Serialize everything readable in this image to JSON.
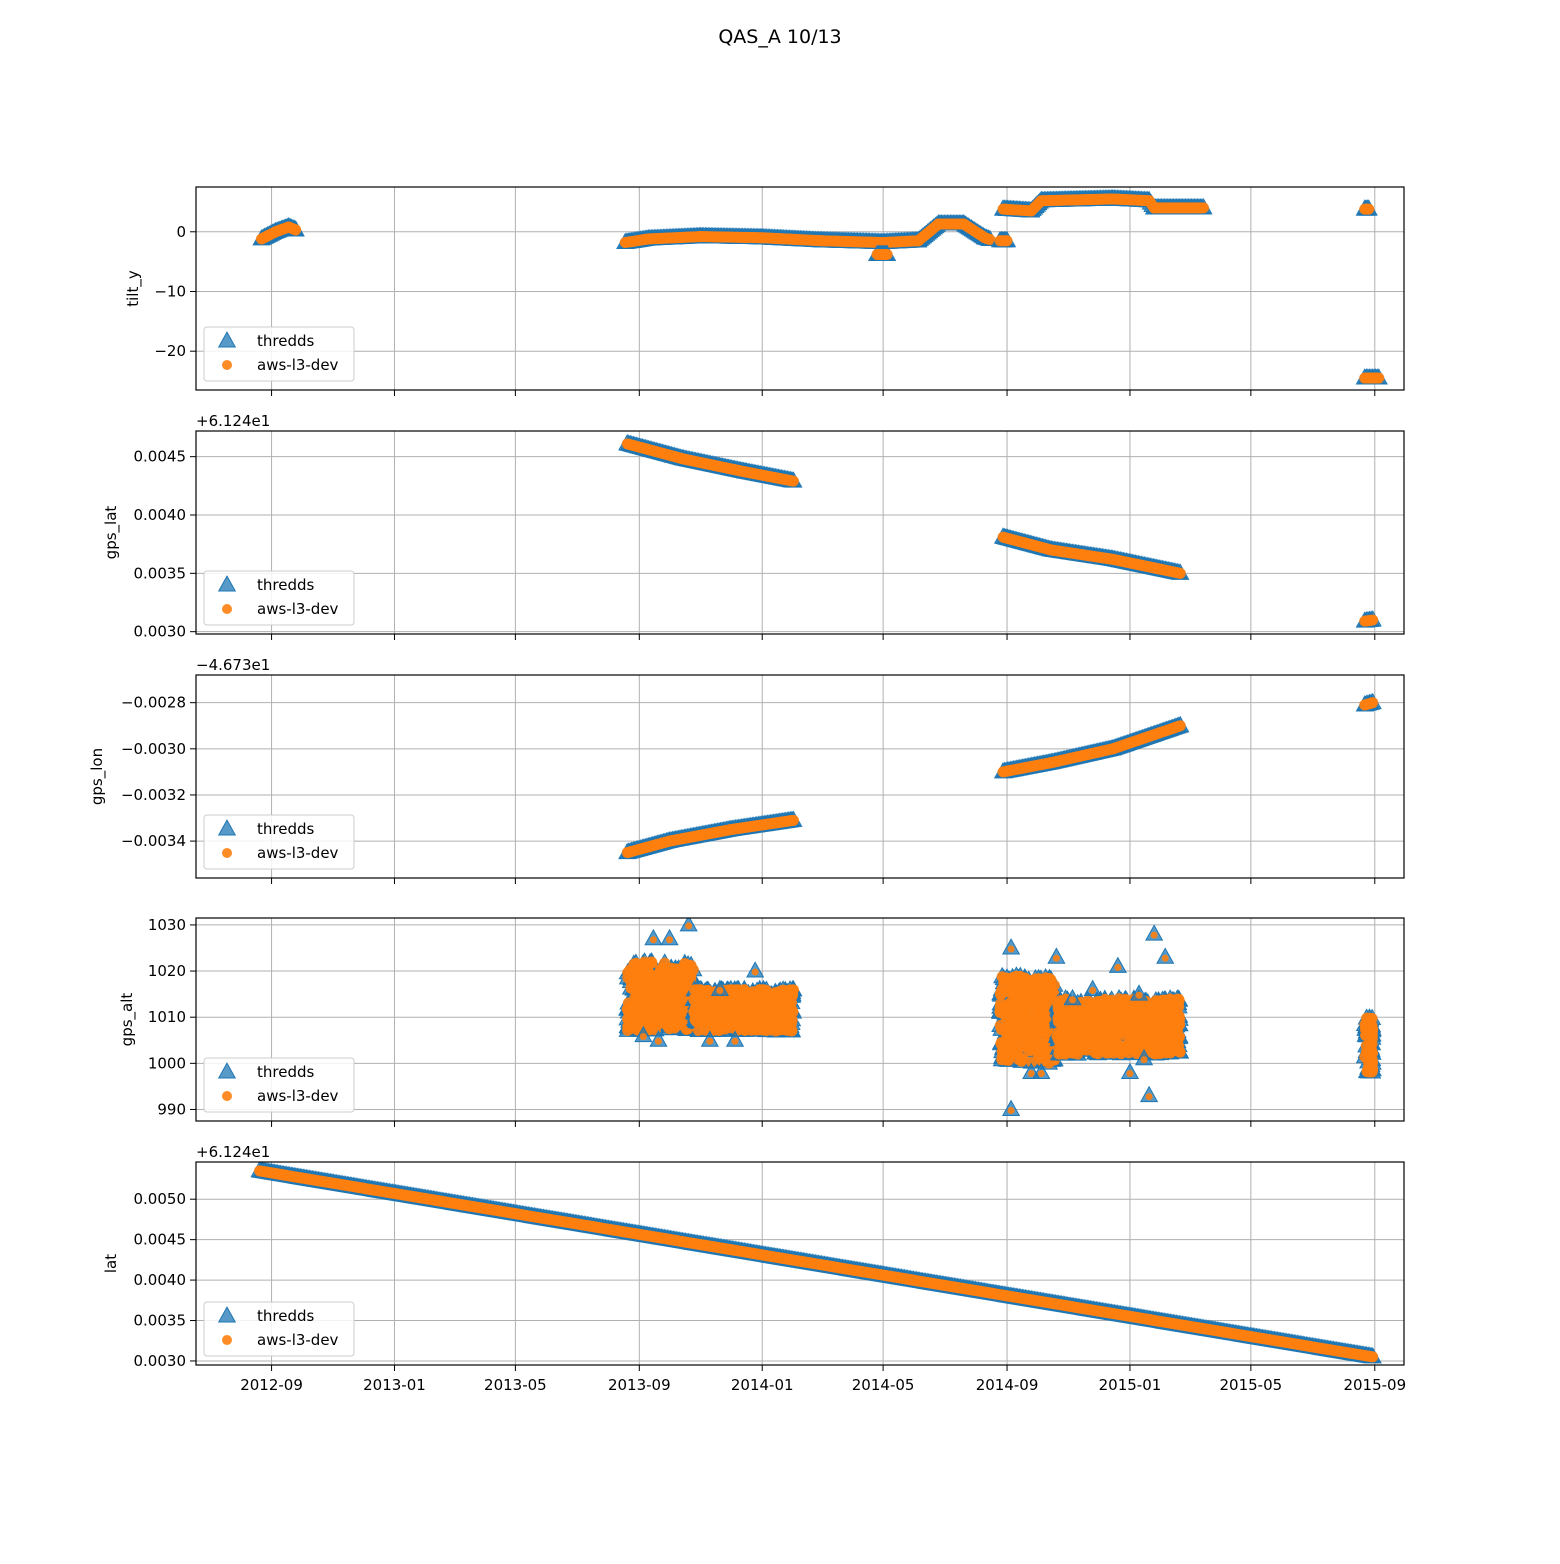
{
  "figure": {
    "title": "QAS_A 10/13"
  },
  "legend": {
    "placement": "lower-left",
    "entries": [
      "thredds",
      "aws-l3-dev"
    ]
  },
  "colors": {
    "thredds": "#1f77b4",
    "aws_l3_dev": "#ff7f0e",
    "grid": "#b0b0b0",
    "axes": "#000000"
  },
  "x_axis": {
    "type": "date",
    "range": [
      "2012-06-18",
      "2015-09-30"
    ],
    "ticks": [
      "2012-09",
      "2013-01",
      "2013-05",
      "2013-09",
      "2014-01",
      "2014-05",
      "2014-09",
      "2015-01",
      "2015-05",
      "2015-09"
    ]
  },
  "chart_data": [
    {
      "type": "scatter",
      "ylabel": "tilt_y",
      "offset_text": "",
      "ylim": [
        -26.5,
        7.5
      ],
      "yticks": [
        0,
        -10,
        -20
      ],
      "ytick_labels": [
        "0",
        "−10",
        "−20"
      ],
      "grid": true,
      "series": [
        {
          "name": "thredds",
          "marker": "triangle",
          "segments": [
            {
              "points": [
                [
                  "2012-08-22",
                  -1.2
                ],
                [
                  "2012-09-05",
                  0.0
                ],
                [
                  "2012-09-18",
                  0.8
                ],
                [
                  "2012-09-25",
                  0.3
                ]
              ]
            },
            {
              "points": [
                [
                  "2013-08-18",
                  -1.8
                ],
                [
                  "2013-09-10",
                  -1.2
                ],
                [
                  "2013-11-01",
                  -0.8
                ],
                [
                  "2014-01-01",
                  -1.0
                ],
                [
                  "2014-03-01",
                  -1.5
                ],
                [
                  "2014-05-01",
                  -1.8
                ],
                [
                  "2014-06-05",
                  -1.5
                ],
                [
                  "2014-06-25",
                  1.3
                ],
                [
                  "2014-07-20",
                  1.3
                ],
                [
                  "2014-08-10",
                  -1.0
                ],
                [
                  "2014-08-15",
                  -1.3
                ]
              ]
            },
            {
              "points": [
                [
                  "2014-08-25",
                  -1.5
                ],
                [
                  "2014-09-01",
                  -1.5
                ]
              ]
            },
            {
              "points": [
                [
                  "2014-08-28",
                  3.8
                ],
                [
                  "2014-09-25",
                  3.5
                ],
                [
                  "2014-10-05",
                  5.2
                ],
                [
                  "2014-12-15",
                  5.5
                ],
                [
                  "2015-01-20",
                  5.2
                ],
                [
                  "2015-01-25",
                  4.0
                ],
                [
                  "2015-03-15",
                  4.0
                ]
              ]
            },
            {
              "points": [
                [
                  "2014-04-25",
                  -3.8
                ],
                [
                  "2014-05-05",
                  -3.8
                ]
              ]
            },
            {
              "points": [
                [
                  "2015-08-22",
                  3.8
                ],
                [
                  "2015-08-26",
                  3.8
                ]
              ]
            },
            {
              "points": [
                [
                  "2015-08-22",
                  -24.5
                ],
                [
                  "2015-09-05",
                  -24.5
                ]
              ]
            }
          ]
        },
        {
          "name": "aws-l3-dev",
          "marker": "circle",
          "same_as": "thredds"
        }
      ]
    },
    {
      "type": "scatter",
      "ylabel": "gps_lat",
      "offset_text": "+6.124e1",
      "ylim": [
        0.00298,
        0.00472
      ],
      "yticks": [
        0.0045,
        0.004,
        0.0035,
        0.003
      ],
      "ytick_labels": [
        "0.0045",
        "0.0040",
        "0.0035",
        "0.0030"
      ],
      "grid": true,
      "series": [
        {
          "name": "thredds",
          "marker": "triangle",
          "segments": [
            {
              "points": [
                [
                  "2013-08-20",
                  0.00461
                ],
                [
                  "2013-10-15",
                  0.00448
                ],
                [
                  "2013-12-15",
                  0.00437
                ],
                [
                  "2014-02-01",
                  0.00429
                ]
              ]
            },
            {
              "points": [
                [
                  "2014-08-28",
                  0.00381
                ],
                [
                  "2014-10-15",
                  0.0037
                ],
                [
                  "2014-12-15",
                  0.00362
                ],
                [
                  "2015-02-20",
                  0.0035
                ]
              ]
            },
            {
              "points": [
                [
                  "2015-08-22",
                  0.00309
                ],
                [
                  "2015-08-30",
                  0.0031
                ]
              ]
            }
          ]
        },
        {
          "name": "aws-l3-dev",
          "marker": "circle",
          "same_as": "thredds"
        }
      ]
    },
    {
      "type": "scatter",
      "ylabel": "gps_lon",
      "offset_text": "−4.673e1",
      "ylim": [
        -0.00356,
        -0.00268
      ],
      "yticks": [
        -0.0028,
        -0.003,
        -0.0032,
        -0.0034
      ],
      "ytick_labels": [
        "−0.0028",
        "−0.0030",
        "−0.0032",
        "−0.0034"
      ],
      "grid": true,
      "series": [
        {
          "name": "thredds",
          "marker": "triangle",
          "segments": [
            {
              "points": [
                [
                  "2013-08-20",
                  -0.00345
                ],
                [
                  "2013-10-01",
                  -0.0034
                ],
                [
                  "2013-12-01",
                  -0.00335
                ],
                [
                  "2014-02-01",
                  -0.00331
                ]
              ]
            },
            {
              "points": [
                [
                  "2014-08-28",
                  -0.0031
                ],
                [
                  "2014-10-15",
                  -0.00306
                ],
                [
                  "2014-12-15",
                  -0.003
                ],
                [
                  "2015-02-20",
                  -0.0029
                ]
              ]
            },
            {
              "points": [
                [
                  "2015-08-22",
                  -0.00281
                ],
                [
                  "2015-08-30",
                  -0.0028
                ]
              ]
            }
          ]
        },
        {
          "name": "aws-l3-dev",
          "marker": "circle",
          "same_as": "thredds"
        }
      ]
    },
    {
      "type": "scatter",
      "ylabel": "gps_alt",
      "offset_text": "",
      "ylim": [
        987.5,
        1031.5
      ],
      "yticks": [
        1030,
        1020,
        1010,
        1000,
        990
      ],
      "ytick_labels": [
        "1030",
        "1020",
        "1010",
        "1000",
        "990"
      ],
      "grid": true,
      "series": [
        {
          "name": "thredds",
          "marker": "triangle",
          "bands": [
            {
              "from": "2013-08-20",
              "to": "2013-10-25",
              "low": 1007,
              "high": 1022
            },
            {
              "from": "2013-10-25",
              "to": "2014-02-01",
              "low": 1007,
              "high": 1016
            },
            {
              "from": "2014-08-25",
              "to": "2014-10-20",
              "low": 1000,
              "high": 1019
            },
            {
              "from": "2014-10-20",
              "to": "2015-02-20",
              "low": 1002,
              "high": 1014
            },
            {
              "from": "2015-08-22",
              "to": "2015-08-30",
              "low": 998,
              "high": 1010
            }
          ],
          "outliers": [
            [
              "2013-09-15",
              1027
            ],
            [
              "2013-10-01",
              1027
            ],
            [
              "2013-10-20",
              1030
            ],
            [
              "2013-09-05",
              1006
            ],
            [
              "2013-09-20",
              1005
            ],
            [
              "2013-11-10",
              1005
            ],
            [
              "2013-12-05",
              1005
            ],
            [
              "2013-12-25",
              1020
            ],
            [
              "2013-11-20",
              1016
            ],
            [
              "2014-09-05",
              1025
            ],
            [
              "2014-10-20",
              1023
            ],
            [
              "2014-09-05",
              990
            ],
            [
              "2014-09-25",
              998
            ],
            [
              "2014-10-05",
              998
            ],
            [
              "2014-11-05",
              1014
            ],
            [
              "2014-12-20",
              1021
            ],
            [
              "2015-01-01",
              998
            ],
            [
              "2015-01-10",
              1015
            ],
            [
              "2015-01-25",
              1028
            ],
            [
              "2015-02-05",
              1023
            ],
            [
              "2015-01-20",
              993
            ],
            [
              "2015-01-15",
              1001
            ],
            [
              "2014-11-25",
              1016
            ]
          ]
        },
        {
          "name": "aws-l3-dev",
          "marker": "circle",
          "same_as": "thredds"
        }
      ]
    },
    {
      "type": "scatter",
      "ylabel": "lat",
      "offset_text": "+6.124e1",
      "ylim": [
        0.00295,
        0.00546
      ],
      "yticks": [
        0.005,
        0.0045,
        0.004,
        0.0035,
        0.003
      ],
      "ytick_labels": [
        "0.0050",
        "0.0045",
        "0.0040",
        "0.0035",
        "0.0030"
      ],
      "grid": true,
      "series": [
        {
          "name": "thredds",
          "marker": "triangle",
          "segments": [
            {
              "points": [
                [
                  "2012-08-20",
                  0.00535
                ],
                [
                  "2015-08-30",
                  0.00305
                ]
              ]
            }
          ]
        },
        {
          "name": "aws-l3-dev",
          "marker": "circle",
          "same_as": "thredds"
        }
      ]
    }
  ]
}
